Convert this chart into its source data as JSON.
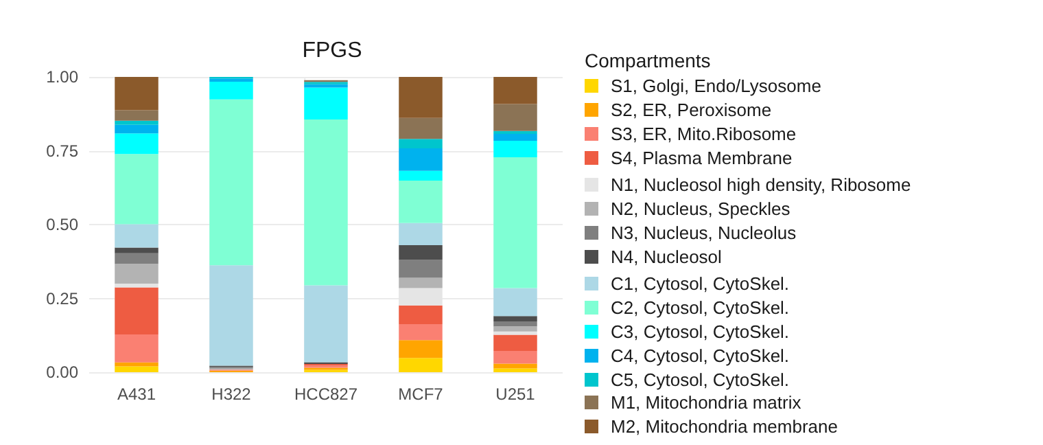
{
  "chart_data": {
    "type": "bar",
    "title": "FPGS",
    "legend_title": "Compartments",
    "stacked": true,
    "grid": true,
    "legend": "right",
    "categories": [
      "A431",
      "H322",
      "HCC827",
      "MCF7",
      "U251"
    ],
    "ylim": [
      0,
      1
    ],
    "yticks": [
      {
        "value": 0,
        "label": "0.00"
      },
      {
        "value": 0.25,
        "label": "0.25"
      },
      {
        "value": 0.5,
        "label": "0.50"
      },
      {
        "value": 0.75,
        "label": "0.75"
      },
      {
        "value": 1,
        "label": "1.00"
      }
    ],
    "series": [
      {
        "name": "S1, Golgi, Endo/Lysosome",
        "color": "#ffd700",
        "values": [
          0.02,
          null,
          0.008,
          0.048,
          0.013
        ]
      },
      {
        "name": "S2, ER, Peroxisome",
        "color": "#ffa500",
        "values": [
          0.013,
          0.005,
          0.007,
          0.061,
          0.016
        ]
      },
      {
        "name": "S3, ER, Mito.Ribosome",
        "color": "#fa8072",
        "values": [
          0.095,
          0.004,
          0.007,
          0.054,
          0.043
        ]
      },
      {
        "name": "S4, Plasma Membrane",
        "color": "#ee5c42",
        "values": [
          0.159,
          null,
          0.006,
          0.063,
          0.055
        ]
      },
      {
        "name": "N1, Nucleosol high density, Ribosome",
        "color": "#e5e5e5",
        "values": [
          0.013,
          null,
          null,
          0.059,
          0.011
        ]
      },
      {
        "name": "N2, Nucleus, Speckles",
        "color": "#b3b3b3",
        "values": [
          0.067,
          0.004,
          null,
          0.035,
          0.017
        ]
      },
      {
        "name": "N3, Nucleus, Nucleolus",
        "color": "#7f7f7f",
        "values": [
          0.036,
          0.005,
          null,
          0.06,
          0.017
        ]
      },
      {
        "name": "N4, Nucleosol",
        "color": "#4d4d4d",
        "values": [
          0.019,
          0.004,
          0.006,
          0.05,
          0.018
        ]
      },
      {
        "name": "C1, Cytosol, CytoSkel.",
        "color": "#add8e6",
        "values": [
          0.079,
          0.34,
          0.26,
          0.075,
          0.095
        ]
      },
      {
        "name": "C2, Cytosol, CytoSkel.",
        "color": "#7fffd4",
        "values": [
          0.238,
          0.562,
          0.562,
          0.144,
          0.443
        ]
      },
      {
        "name": "C3, Cytosol, CytoSkel.",
        "color": "#00ffff",
        "values": [
          0.07,
          0.06,
          0.108,
          0.033,
          0.056
        ]
      },
      {
        "name": "C4, Cytosol, CytoSkel.",
        "color": "#00b2ee",
        "values": [
          0.029,
          0.011,
          0.011,
          0.076,
          0.023
        ]
      },
      {
        "name": "C5, Cytosol, CytoSkel.",
        "color": "#00c5cd",
        "values": [
          0.014,
          0.005,
          0.008,
          0.032,
          0.01
        ]
      },
      {
        "name": "M1, Mitochondria matrix",
        "color": "#8b7355",
        "values": [
          0.035,
          null,
          0.006,
          0.071,
          0.091
        ]
      },
      {
        "name": "M2, Mitochondria membrane",
        "color": "#8b5a2b",
        "values": [
          0.113,
          null,
          null,
          0.139,
          0.092
        ]
      }
    ]
  }
}
